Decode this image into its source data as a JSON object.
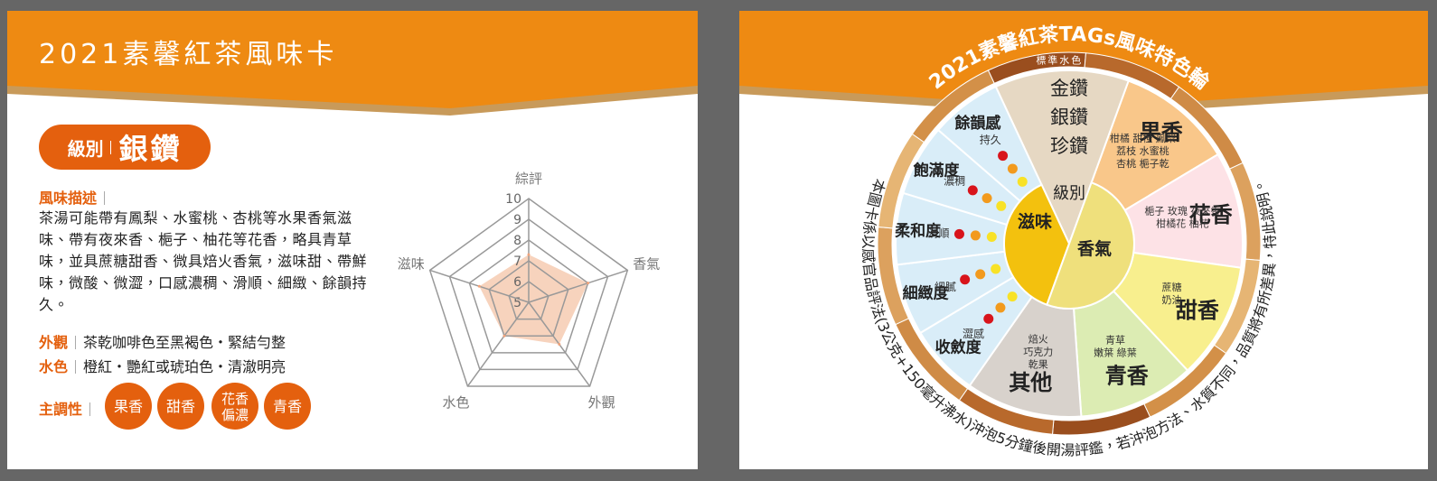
{
  "left_card": {
    "title": "2021素馨紅茶風味卡",
    "grade": {
      "label": "級別",
      "value": "銀鑽"
    },
    "description": {
      "label": "風味描述",
      "text": "茶湯可能帶有鳳梨、水蜜桃、杏桃等水果香氣滋味、帶有夜來香、梔子、柚花等花香，略具青草味，並具蔗糖甜香、微具焙火香氣，滋味甜、帶鮮味，微酸、微澀，口感濃稠、滑順、細緻、餘韻持久。"
    },
    "appearance": {
      "label": "外觀",
      "text": "茶乾咖啡色至黑褐色・緊結勻整"
    },
    "liquor": {
      "label": "水色",
      "text": "橙紅・艷紅或琥珀色・清澈明亮"
    },
    "key_notes": {
      "label": "主調性",
      "tags": [
        [
          "果香"
        ],
        [
          "甜香"
        ],
        [
          "花香",
          "偏濃"
        ],
        [
          "青香"
        ]
      ]
    }
  },
  "chart_data": {
    "type": "radar",
    "categories": [
      "綜評",
      "香氣",
      "外觀",
      "水色",
      "滋味"
    ],
    "values": [
      7.3,
      8,
      7.5,
      7,
      7.5
    ],
    "rlim": [
      5,
      10
    ],
    "rticks": [
      5,
      6,
      7,
      8,
      9,
      10
    ],
    "color": "#f7d3bd"
  },
  "right_card": {
    "title": "2021素馨紅茶TAGs風味特色輪",
    "ring_label": "標準水色",
    "grade": {
      "label": "級別",
      "options": [
        "金鑽",
        "銀鑽",
        "珍鑽"
      ]
    },
    "aroma": {
      "label": "香氣",
      "segments": [
        {
          "name": "果香",
          "notes": [
            "柑橘 甜橙 鳳梨",
            "荔枝 水蜜桃",
            "杏桃 梔子乾"
          ]
        },
        {
          "name": "花香",
          "notes": [
            "梔子 玫瑰 夜來香",
            "柑橘花 柚花"
          ]
        },
        {
          "name": "甜香",
          "notes": [
            "蔗糖",
            "奶油"
          ]
        },
        {
          "name": "青香",
          "notes": [
            "青草",
            "嫩葉 綠葉"
          ]
        },
        {
          "name": "其他",
          "notes": [
            "焙火",
            "巧克力",
            "乾果"
          ]
        }
      ]
    },
    "taste": {
      "label": "滋味",
      "segments": [
        {
          "name": "收斂度",
          "note": "澀感"
        },
        {
          "name": "細緻度",
          "note": "細膩"
        },
        {
          "name": "柔和度",
          "note": "滑順"
        },
        {
          "name": "飽滿度",
          "note": "濃稠"
        },
        {
          "name": "餘韻感",
          "note": "持久"
        }
      ]
    },
    "footnote": "本圖卡係以感官品評法(3公克+150毫升沸水)沖泡5分鐘後開湯評鑑，若沖泡方法、水質不同，品質將有所差異，特此說明。"
  }
}
